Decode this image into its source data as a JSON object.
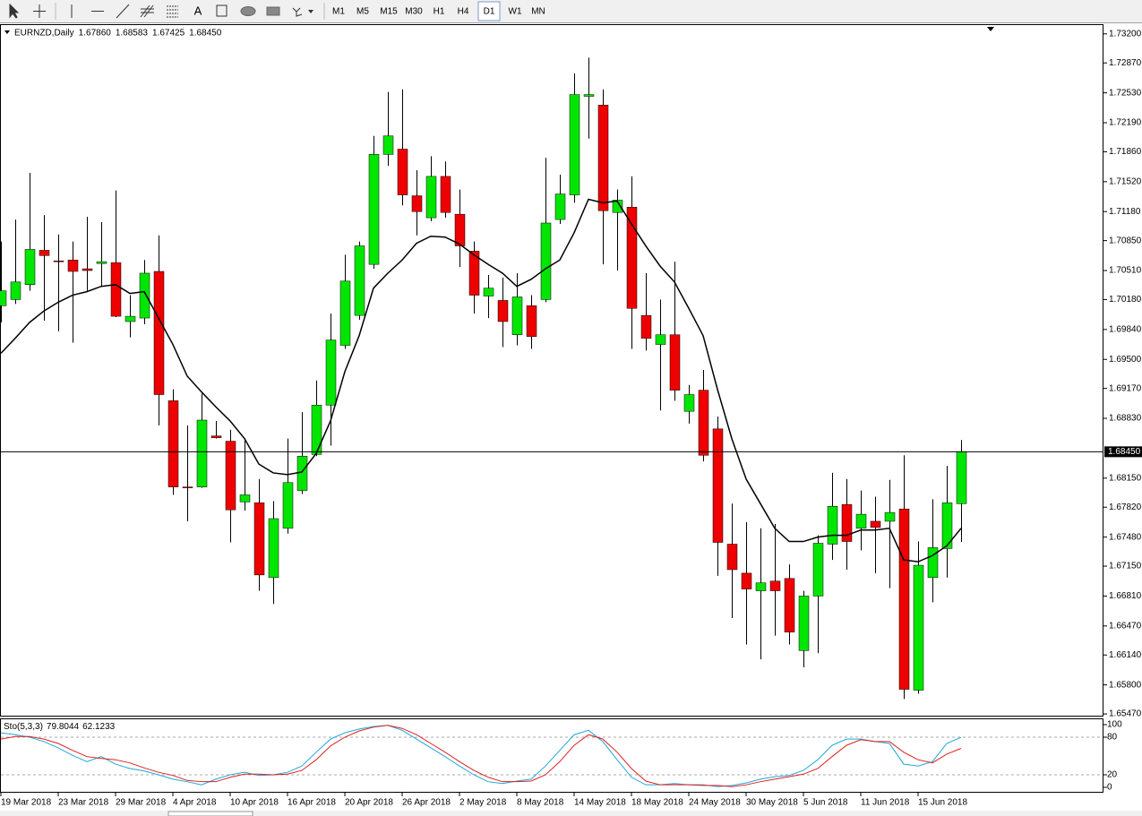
{
  "toolbar": {
    "text_tool": "A",
    "timeframes": [
      {
        "label": "M1"
      },
      {
        "label": "M5"
      },
      {
        "label": "M15"
      },
      {
        "label": "M30"
      },
      {
        "label": "H1"
      },
      {
        "label": "H4"
      },
      {
        "label": "D1",
        "selected": true
      },
      {
        "label": "W1"
      },
      {
        "label": "MN"
      }
    ]
  },
  "chart_data": [
    {
      "type": "candlestick",
      "title": "EURNZD,Daily",
      "ohlc_labels": [
        "1.67860",
        "1.68583",
        "1.67425",
        "1.68450"
      ],
      "categories": [
        "19 Mar 2018",
        null,
        null,
        null,
        "23 Mar 2018",
        null,
        null,
        null,
        "29 Mar 2018",
        null,
        null,
        null,
        "4 Apr 2018",
        null,
        null,
        null,
        "10 Apr 2018",
        null,
        null,
        null,
        "16 Apr 2018",
        null,
        null,
        null,
        "20 Apr 2018",
        null,
        null,
        null,
        "26 Apr 2018",
        null,
        null,
        null,
        "2 May 2018",
        null,
        null,
        null,
        "8 May 2018",
        null,
        null,
        null,
        "14 May 2018",
        null,
        null,
        null,
        "18 May 2018",
        null,
        null,
        null,
        "24 May 2018",
        null,
        null,
        null,
        "30 May 2018",
        null,
        null,
        null,
        "5 Jun 2018",
        null,
        null,
        null,
        "11 Jun 2018",
        null,
        null,
        null,
        "15 Jun 2018",
        null,
        null,
        null
      ],
      "open": [
        1.7011,
        1.7018,
        1.7035,
        1.7074,
        1.7062,
        1.7063,
        1.7053,
        1.7059,
        1.706,
        1.6993,
        1.6997,
        1.705,
        1.6903,
        1.6805,
        1.6805,
        1.6863,
        1.6857,
        1.6788,
        1.6787,
        1.6702,
        1.6758,
        1.6801,
        1.6842,
        1.6898,
        1.6966,
        1.7,
        1.7058,
        1.7183,
        1.7189,
        1.7136,
        1.7111,
        1.7158,
        1.7115,
        1.7073,
        1.7022,
        1.7017,
        1.6978,
        1.7011,
        1.7018,
        1.7109,
        1.7137,
        1.7249,
        1.7239,
        1.7117,
        1.7123,
        1.7,
        1.6967,
        1.6978,
        1.6891,
        1.6915,
        1.6871,
        1.674,
        1.6707,
        1.6687,
        1.6698,
        1.6701,
        1.6619,
        1.6681,
        1.674,
        1.6785,
        1.6758,
        1.6766,
        1.6766,
        1.678,
        1.6574,
        1.6702,
        1.6735,
        1.6786
      ],
      "high": [
        1.7084,
        1.7109,
        1.7162,
        1.7114,
        1.7092,
        1.7084,
        1.7112,
        1.7106,
        1.7142,
        1.7023,
        1.7063,
        1.7091,
        1.6916,
        1.6875,
        1.6911,
        1.688,
        1.687,
        1.686,
        1.6814,
        1.6789,
        1.686,
        1.689,
        1.6926,
        1.7002,
        1.7069,
        1.7084,
        1.7204,
        1.7254,
        1.7257,
        1.7165,
        1.7181,
        1.7175,
        1.7143,
        1.7084,
        1.7046,
        1.7043,
        1.7048,
        1.7023,
        1.7179,
        1.716,
        1.7275,
        1.7293,
        1.7257,
        1.7143,
        1.7158,
        1.7048,
        1.7018,
        1.7061,
        1.6921,
        1.6938,
        1.6885,
        1.6786,
        1.6765,
        1.6758,
        1.6763,
        1.6717,
        1.6687,
        1.675,
        1.6821,
        1.6814,
        1.6801,
        1.6794,
        1.6813,
        1.6841,
        1.6743,
        1.6791,
        1.6829,
        1.68583
      ],
      "low": [
        1.6992,
        1.7013,
        1.7028,
        1.6994,
        1.6982,
        1.6969,
        1.7028,
        1.7033,
        1.6998,
        1.6975,
        1.699,
        1.6875,
        1.6796,
        1.6766,
        1.6804,
        1.686,
        1.6742,
        1.6778,
        1.6687,
        1.6672,
        1.6752,
        1.6797,
        1.684,
        1.6852,
        1.6962,
        1.6995,
        1.7053,
        1.717,
        1.7125,
        1.7091,
        1.7107,
        1.7111,
        1.7055,
        1.7002,
        1.6997,
        1.6964,
        1.6966,
        1.6962,
        1.7015,
        1.7104,
        1.7128,
        1.7201,
        1.7058,
        1.7051,
        1.6962,
        1.696,
        1.6892,
        1.6903,
        1.6877,
        1.6834,
        1.6704,
        1.6656,
        1.6626,
        1.6609,
        1.6636,
        1.6626,
        1.66,
        1.6616,
        1.6722,
        1.6711,
        1.6733,
        1.6707,
        1.669,
        1.6564,
        1.657,
        1.6674,
        1.6702,
        1.67425
      ],
      "close": [
        1.7028,
        1.7038,
        1.7075,
        1.7068,
        1.7061,
        1.705,
        1.7051,
        1.7061,
        1.6999,
        1.6999,
        1.7048,
        1.691,
        1.6805,
        1.6804,
        1.6881,
        1.6861,
        1.6779,
        1.6796,
        1.6705,
        1.6769,
        1.681,
        1.684,
        1.6898,
        1.6972,
        1.7039,
        1.7079,
        1.7183,
        1.7204,
        1.7137,
        1.7118,
        1.7158,
        1.7117,
        1.7079,
        1.7023,
        1.7031,
        1.6993,
        1.7021,
        1.6976,
        1.7105,
        1.7138,
        1.7251,
        1.7251,
        1.7119,
        1.7131,
        1.7008,
        1.6974,
        1.6978,
        1.6915,
        1.691,
        1.6841,
        1.6742,
        1.6711,
        1.6689,
        1.6696,
        1.6687,
        1.664,
        1.6681,
        1.6741,
        1.6783,
        1.6743,
        1.6774,
        1.6759,
        1.6776,
        1.6575,
        1.6716,
        1.6736,
        1.6787,
        1.6845
      ],
      "up_color": "#00e600",
      "down_color": "#ee0000",
      "wick_color": "#000000",
      "series": [
        {
          "color": "#000000",
          "values": [
            1.6957,
            1.6974,
            1.6992,
            1.7005,
            1.7015,
            1.7023,
            1.7027,
            1.7033,
            1.7035,
            1.7025,
            1.7027,
            1.6997,
            1.6967,
            1.6931,
            1.6913,
            1.6896,
            1.688,
            1.686,
            1.6831,
            1.6821,
            1.6819,
            1.6822,
            1.6843,
            1.688,
            1.6936,
            1.6977,
            1.7031,
            1.7048,
            1.7063,
            1.7082,
            1.709,
            1.7089,
            1.7081,
            1.7069,
            1.7058,
            1.7048,
            1.7033,
            1.7041,
            1.7053,
            1.7063,
            1.7094,
            1.7132,
            1.7128,
            1.713,
            1.7104,
            1.7079,
            1.7056,
            1.7038,
            1.7008,
            1.6977,
            1.6916,
            1.686,
            1.6814,
            1.6786,
            1.6758,
            1.6743,
            1.6743,
            1.6748,
            1.675,
            1.675,
            1.6756,
            1.6756,
            1.6758,
            1.6722,
            1.672,
            1.6727,
            1.6738,
            1.6758
          ]
        }
      ],
      "last_price": {
        "value": 1.6845,
        "label": "1.68450"
      },
      "ylim": [
        1.6544,
        1.733
      ],
      "yticks": [
        {
          "value": 1.732,
          "label": "1.73200"
        },
        {
          "value": 1.7287,
          "label": "1.72870"
        },
        {
          "value": 1.7253,
          "label": "1.72530"
        },
        {
          "value": 1.7219,
          "label": "1.72190"
        },
        {
          "value": 1.7186,
          "label": "1.71860"
        },
        {
          "value": 1.7152,
          "label": "1.71520"
        },
        {
          "value": 1.7118,
          "label": "1.71180"
        },
        {
          "value": 1.7085,
          "label": "1.70850"
        },
        {
          "value": 1.7051,
          "label": "1.70510"
        },
        {
          "value": 1.7018,
          "label": "1.70180"
        },
        {
          "value": 1.6984,
          "label": "1.69840"
        },
        {
          "value": 1.695,
          "label": "1.69500"
        },
        {
          "value": 1.6917,
          "label": "1.69170"
        },
        {
          "value": 1.6883,
          "label": "1.68830"
        },
        {
          "value": 1.6815,
          "label": "1.68150"
        },
        {
          "value": 1.6782,
          "label": "1.67820"
        },
        {
          "value": 1.6748,
          "label": "1.67480"
        },
        {
          "value": 1.6715,
          "label": "1.67150"
        },
        {
          "value": 1.6681,
          "label": "1.66810"
        },
        {
          "value": 1.6647,
          "label": "1.66470"
        },
        {
          "value": 1.6614,
          "label": "1.66140"
        },
        {
          "value": 1.658,
          "label": "1.65800"
        },
        {
          "value": 1.6547,
          "label": "1.65470"
        }
      ]
    },
    {
      "type": "line",
      "title": "Sto(5,3,3)",
      "readout": [
        "79.8044",
        "62.1233"
      ],
      "series": [
        {
          "color": "#1fa8d8",
          "values": [
            87,
            84,
            80,
            73,
            63,
            51,
            41,
            49,
            37,
            30,
            26,
            20,
            13,
            9,
            4,
            13,
            20,
            24,
            19,
            20,
            24,
            34,
            56,
            77,
            87,
            93,
            97,
            99,
            91,
            77,
            63,
            49,
            34,
            20,
            9,
            6,
            10,
            13,
            34,
            59,
            84,
            91,
            73,
            44,
            16,
            4,
            4,
            6,
            4,
            4,
            1,
            3,
            7,
            13,
            17,
            19,
            27,
            44,
            67,
            77,
            77,
            73,
            70,
            37,
            34,
            41,
            70,
            79.8044
          ]
        },
        {
          "color": "#e02020",
          "values": [
            77,
            81,
            81,
            77,
            70,
            59,
            49,
            46,
            44,
            39,
            31,
            24,
            19,
            11,
            9,
            9,
            16,
            21,
            21,
            20,
            21,
            27,
            44,
            66,
            80,
            90,
            96,
            99,
            94,
            84,
            70,
            56,
            41,
            27,
            16,
            9,
            9,
            10,
            20,
            41,
            67,
            84,
            77,
            56,
            30,
            10,
            4,
            4,
            4,
            3,
            3,
            1,
            4,
            9,
            13,
            17,
            21,
            30,
            49,
            67,
            76,
            73,
            73,
            56,
            44,
            39,
            53,
            62.1233
          ]
        }
      ],
      "levels": [
        20,
        80
      ],
      "ylim": [
        -8.6,
        108.6
      ],
      "yticks": [
        0,
        20,
        80,
        100
      ]
    }
  ]
}
